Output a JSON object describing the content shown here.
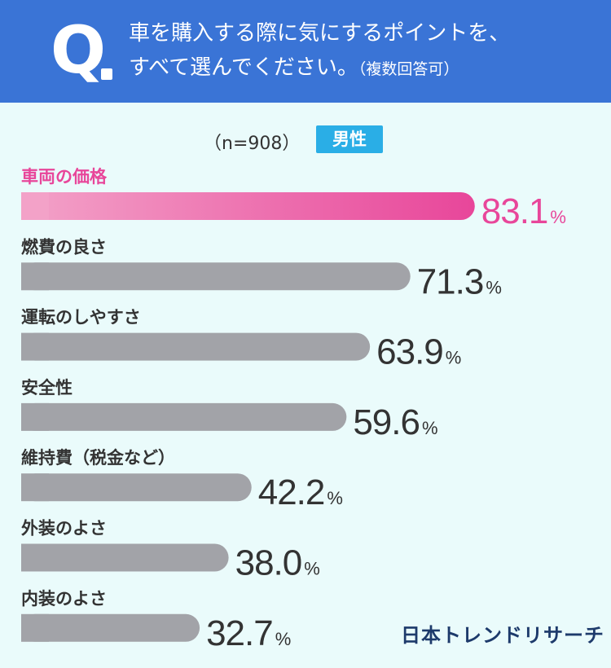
{
  "header": {
    "q_mark": "Q",
    "question_line1": "車を購入する際に気にするポイントを、",
    "question_line2": "すべて選んでください。",
    "question_note": "（複数回答可）"
  },
  "meta": {
    "sample_label": "（n=908）",
    "gender_badge": "男性"
  },
  "colors": {
    "header_bg": "#3a74d6",
    "background": "#eafbfb",
    "highlight_start": "#f3a2c8",
    "highlight_end": "#e8469a",
    "highlight_text": "#e8469a",
    "bar_gray": "#a2a3a8",
    "text_dark": "#333333",
    "badge": "#2aaee6"
  },
  "chart_data": {
    "type": "bar",
    "orientation": "horizontal",
    "categories": [
      "車両の価格",
      "燃費の良さ",
      "運転のしやすさ",
      "安全性",
      "維持費（税金など）",
      "外装のよさ",
      "内装のよさ"
    ],
    "values": [
      83.1,
      71.3,
      63.9,
      59.6,
      42.2,
      38.0,
      32.7
    ],
    "value_labels": [
      "83.1",
      "71.3",
      "63.9",
      "59.6",
      "42.2",
      "38.0",
      "32.7"
    ],
    "unit": "%",
    "highlight_index": 0,
    "xlim": [
      0,
      100
    ],
    "grid": false,
    "legend": "none"
  },
  "brand": "日本トレンドリサーチ"
}
